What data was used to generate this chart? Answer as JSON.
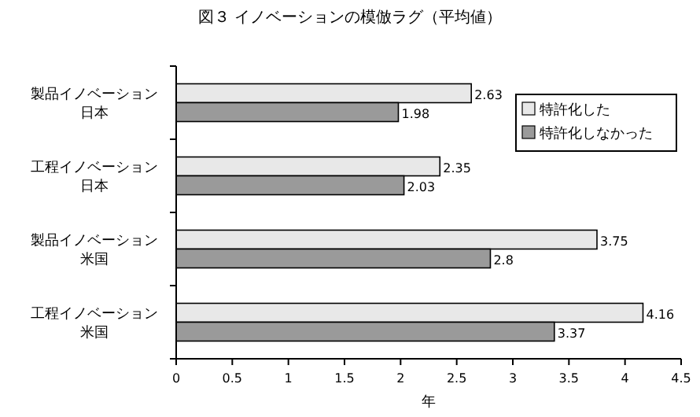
{
  "chart_data": {
    "type": "bar",
    "orientation": "horizontal",
    "title": "図３ イノベーションの模倣ラグ（平均値）",
    "xlabel": "年",
    "categories": [
      "製品イノベーション日本",
      "工程イノベーション日本",
      "製品イノベーション米国",
      "工程イノベーション米国"
    ],
    "series": [
      {
        "name": "特許化した",
        "color": "#e8e8e8",
        "values": [
          2.63,
          2.35,
          3.75,
          4.16
        ]
      },
      {
        "name": "特許化しなかった",
        "color": "#9a9a9a",
        "values": [
          1.98,
          2.03,
          2.8,
          3.37
        ]
      }
    ],
    "xlim": [
      0,
      4.5
    ],
    "xticks": [
      0,
      0.5,
      1,
      1.5,
      2,
      2.5,
      3,
      3.5,
      4,
      4.5
    ],
    "data_labels": true,
    "legend": "top right"
  }
}
